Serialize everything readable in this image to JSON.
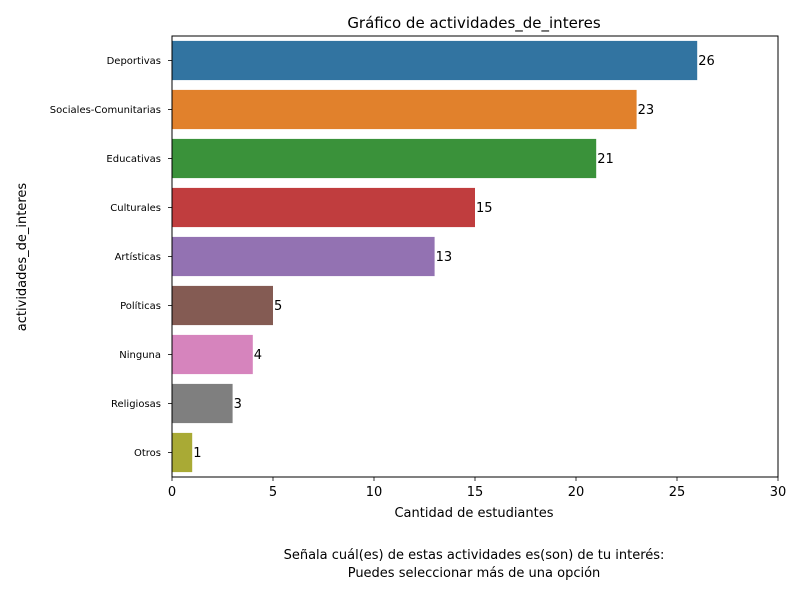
{
  "chart_data": {
    "type": "bar",
    "orientation": "horizontal",
    "title": "Gráfico de actividades_de_interes",
    "xlabel": "Cantidad de estudiantes",
    "ylabel": "actividades_de_interes",
    "xlim": [
      0,
      30
    ],
    "xticks": [
      0,
      5,
      10,
      15,
      20,
      25,
      30
    ],
    "grid": false,
    "categories": [
      "Deportivas",
      "Sociales-Comunitarias",
      "Educativas",
      "Culturales",
      "Artísticas",
      "Políticas",
      "Ninguna",
      "Religiosas",
      "Otros"
    ],
    "values": [
      26,
      23,
      21,
      15,
      13,
      5,
      4,
      3,
      1
    ],
    "colors": [
      "#3274a1",
      "#e1812c",
      "#3a923a",
      "#c03d3e",
      "#9372b2",
      "#845b53",
      "#d684bd",
      "#7f7f7f",
      "#a9aa35"
    ],
    "data_labels": [
      "26",
      "23",
      "21",
      "15",
      "13",
      "5",
      "4",
      "3",
      "1"
    ]
  },
  "caption": {
    "line1": "Señala cuál(es) de estas actividades es(son) de tu interés:",
    "line2": "Puedes seleccionar más de una opción"
  }
}
